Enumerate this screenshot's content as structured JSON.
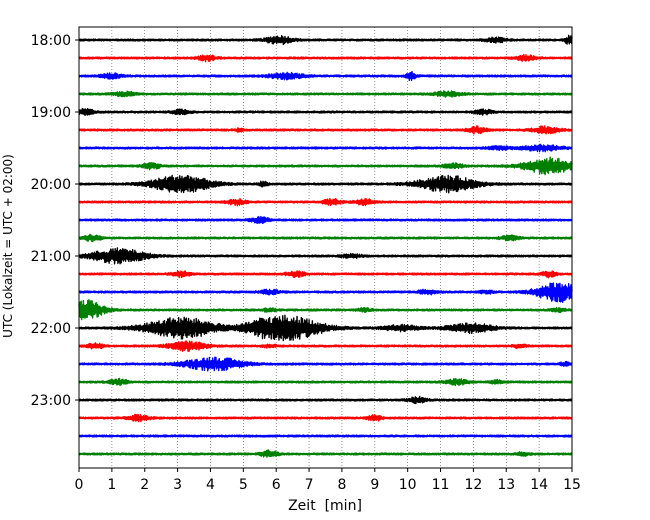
{
  "chart_data": {
    "type": "line",
    "title": "",
    "xlabel": "Zeit  [min]",
    "ylabel": "UTC (Lokalzeit = UTC + 02:00)",
    "xlim": [
      0,
      15
    ],
    "x_ticks": [
      "0",
      "1",
      "2",
      "3",
      "4",
      "5",
      "6",
      "7",
      "8",
      "9",
      "10",
      "11",
      "12",
      "13",
      "14",
      "15"
    ],
    "y_tick_labels": [
      "18:00",
      "19:00",
      "20:00",
      "21:00",
      "22:00",
      "23:00"
    ],
    "grid": "vertical dotted",
    "legend": "none",
    "line_colors": [
      "#000000",
      "#ff0000",
      "#0000ff",
      "#008000"
    ],
    "traces_start": "18:00",
    "traces_end": "23:45",
    "trace_interval_min": 15,
    "series": [
      {
        "time": "18:00",
        "color": "black",
        "bursts": [
          [
            6.1,
            0.6,
            0.5
          ],
          [
            12.7,
            0.5,
            0.3
          ],
          [
            14.9,
            0.2,
            0.5
          ]
        ]
      },
      {
        "time": "18:15",
        "color": "red",
        "bursts": [
          [
            3.9,
            0.4,
            0.35
          ],
          [
            13.6,
            0.4,
            0.35
          ]
        ]
      },
      {
        "time": "18:30",
        "color": "blue",
        "bursts": [
          [
            1.0,
            0.5,
            0.3
          ],
          [
            6.3,
            0.8,
            0.35
          ],
          [
            10.1,
            0.2,
            0.5
          ]
        ]
      },
      {
        "time": "18:45",
        "color": "green",
        "bursts": [
          [
            1.4,
            0.5,
            0.25
          ],
          [
            11.2,
            0.6,
            0.3
          ]
        ]
      },
      {
        "time": "19:00",
        "color": "black",
        "bursts": [
          [
            0.2,
            0.4,
            0.35
          ],
          [
            3.1,
            0.4,
            0.3
          ],
          [
            12.3,
            0.4,
            0.3
          ]
        ]
      },
      {
        "time": "19:15",
        "color": "red",
        "bursts": [
          [
            4.9,
            0.2,
            0.2
          ],
          [
            12.1,
            0.4,
            0.4
          ],
          [
            14.2,
            0.6,
            0.4
          ]
        ]
      },
      {
        "time": "19:30",
        "color": "blue",
        "bursts": [
          [
            12.8,
            0.5,
            0.2
          ],
          [
            14.1,
            0.9,
            0.35
          ]
        ]
      },
      {
        "time": "19:45",
        "color": "green",
        "bursts": [
          [
            2.2,
            0.4,
            0.35
          ],
          [
            11.4,
            0.4,
            0.35
          ],
          [
            14.3,
            1.1,
            1.0
          ]
        ]
      },
      {
        "time": "20:00",
        "color": "black",
        "bursts": [
          [
            3.1,
            1.3,
            1.1
          ],
          [
            5.6,
            0.2,
            0.3
          ],
          [
            11.2,
            1.3,
            1.0
          ]
        ]
      },
      {
        "time": "20:15",
        "color": "red",
        "bursts": [
          [
            4.8,
            0.4,
            0.35
          ],
          [
            7.7,
            0.4,
            0.35
          ],
          [
            8.7,
            0.4,
            0.35
          ]
        ]
      },
      {
        "time": "20:30",
        "color": "blue",
        "bursts": [
          [
            5.5,
            0.4,
            0.35
          ]
        ]
      },
      {
        "time": "20:45",
        "color": "green",
        "bursts": [
          [
            0.4,
            0.4,
            0.35
          ],
          [
            13.1,
            0.4,
            0.3
          ]
        ]
      },
      {
        "time": "21:00",
        "color": "black",
        "bursts": [
          [
            1.2,
            1.2,
            0.9
          ],
          [
            8.3,
            0.5,
            0.2
          ]
        ]
      },
      {
        "time": "21:15",
        "color": "red",
        "bursts": [
          [
            3.1,
            0.4,
            0.35
          ],
          [
            6.6,
            0.4,
            0.35
          ],
          [
            14.3,
            0.3,
            0.35
          ]
        ]
      },
      {
        "time": "21:30",
        "color": "blue",
        "bursts": [
          [
            5.8,
            0.4,
            0.3
          ],
          [
            10.6,
            0.4,
            0.3
          ],
          [
            12.4,
            0.3,
            0.2
          ],
          [
            14.6,
            1.0,
            1.2
          ]
        ]
      },
      {
        "time": "21:45",
        "color": "green",
        "bursts": [
          [
            0.2,
            0.8,
            1.2
          ],
          [
            5.8,
            0.3,
            0.2
          ],
          [
            8.7,
            0.3,
            0.2
          ],
          [
            14.6,
            0.3,
            0.2
          ]
        ]
      },
      {
        "time": "22:00",
        "color": "black",
        "bursts": [
          [
            3.1,
            1.6,
            1.3
          ],
          [
            5.5,
            0.5,
            0.3
          ],
          [
            6.3,
            1.6,
            1.5
          ],
          [
            9.8,
            0.8,
            0.35
          ],
          [
            11.9,
            1.0,
            0.6
          ]
        ]
      },
      {
        "time": "22:15",
        "color": "red",
        "bursts": [
          [
            0.5,
            0.4,
            0.3
          ],
          [
            3.3,
            0.8,
            0.6
          ],
          [
            5.8,
            0.3,
            0.2
          ],
          [
            13.4,
            0.3,
            0.2
          ]
        ]
      },
      {
        "time": "22:30",
        "color": "blue",
        "bursts": [
          [
            4.1,
            1.3,
            0.8
          ],
          [
            14.8,
            0.3,
            0.2
          ]
        ]
      },
      {
        "time": "22:45",
        "color": "green",
        "bursts": [
          [
            1.2,
            0.4,
            0.35
          ],
          [
            11.5,
            0.5,
            0.35
          ],
          [
            12.7,
            0.3,
            0.2
          ]
        ]
      },
      {
        "time": "23:00",
        "color": "black",
        "bursts": [
          [
            10.3,
            0.4,
            0.35
          ]
        ]
      },
      {
        "time": "23:15",
        "color": "red",
        "bursts": [
          [
            1.8,
            0.5,
            0.35
          ],
          [
            9.0,
            0.3,
            0.35
          ]
        ]
      },
      {
        "time": "23:30",
        "color": "blue",
        "bursts": []
      },
      {
        "time": "23:45",
        "color": "green",
        "bursts": [
          [
            5.8,
            0.4,
            0.4
          ],
          [
            13.5,
            0.3,
            0.2
          ]
        ]
      }
    ]
  }
}
